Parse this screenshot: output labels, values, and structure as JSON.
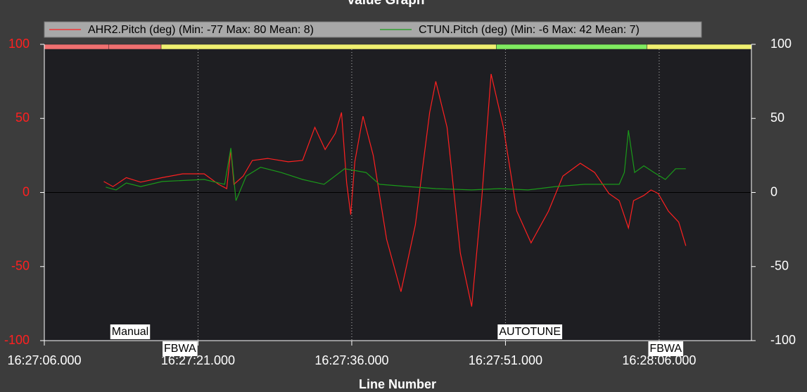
{
  "chart_data": {
    "type": "line",
    "title": "Value Graph",
    "xlabel": "Line Number",
    "xlim": [
      0,
      69
    ],
    "xticks": [
      {
        "value": 0,
        "label": "16:27:06.000"
      },
      {
        "value": 15,
        "label": "16:27:21.000"
      },
      {
        "value": 30,
        "label": "16:27:36.000"
      },
      {
        "value": 45,
        "label": "16:27:51.000"
      },
      {
        "value": 60,
        "label": "16:28:06.000"
      }
    ],
    "ylim": [
      -100,
      100
    ],
    "yticks": [
      -100,
      -50,
      0,
      50,
      100
    ],
    "y2lim": [
      -100,
      100
    ],
    "y2ticks": [
      -100,
      -50,
      0,
      50,
      100
    ],
    "grid": true,
    "series": [
      {
        "name": "AHR2.Pitch (deg) (Min: -77 Max: 80 Mean: 8)",
        "color": "#ff2020",
        "x": [
          5.8,
          6.7,
          8.0,
          9.4,
          11.5,
          13.5,
          15.6,
          17.0,
          17.8,
          18.2,
          18.5,
          19.4,
          20.3,
          21.8,
          23.8,
          25.2,
          26.4,
          27.4,
          28.4,
          29.0,
          29.5,
          29.9,
          30.3,
          31.1,
          32.1,
          33.4,
          34.8,
          36.2,
          37.6,
          38.2,
          39.3,
          40.6,
          41.7,
          42.7,
          43.6,
          44.8,
          46.1,
          47.5,
          49.2,
          50.6,
          52.3,
          53.7,
          55.1,
          56.1,
          57.0,
          57.5,
          58.5,
          59.2,
          59.9,
          60.9,
          61.9,
          62.6
        ],
        "values": [
          7.4,
          4,
          10,
          7,
          10,
          12.6,
          12.6,
          5.5,
          2.6,
          29,
          5.5,
          11,
          21.6,
          23,
          20.7,
          21.6,
          44,
          29,
          40,
          54,
          6.4,
          -15,
          20.7,
          51.5,
          25,
          -31.6,
          -67,
          -22,
          54,
          75,
          44,
          -41,
          -77,
          -3,
          80,
          44,
          -12.6,
          -34,
          -12.6,
          11,
          19.7,
          13.5,
          -0.7,
          -5.5,
          -24,
          -5.5,
          -2,
          1.7,
          -0.7,
          -12.6,
          -20,
          -36
        ]
      },
      {
        "name": "CTUN.Pitch (deg) (Min: -6 Max: 42 Mean: 7)",
        "color": "#1a9a1a",
        "x": [
          6.0,
          7.0,
          8.0,
          9.4,
          11.5,
          15.6,
          17.6,
          18.2,
          18.7,
          19.7,
          21.1,
          23.1,
          25.2,
          27.3,
          29.3,
          31.4,
          32.7,
          35.5,
          38.2,
          41.7,
          44.4,
          47.2,
          49.9,
          52.7,
          56.1,
          56.6,
          57.0,
          57.6,
          58.5,
          59.5,
          60.6,
          61.6,
          62.6
        ],
        "values": [
          3.6,
          1.7,
          6.4,
          4,
          7.4,
          8.8,
          5.5,
          30,
          -5.5,
          11,
          17,
          13.5,
          8.8,
          5.5,
          16,
          13.5,
          5.5,
          4,
          2.6,
          1.7,
          2.6,
          1.7,
          4,
          5.5,
          5.5,
          13.5,
          42,
          13.5,
          18,
          13.5,
          8.8,
          16,
          16
        ]
      }
    ],
    "modes": [
      {
        "label": null,
        "start": 0,
        "color": "#f07070"
      },
      {
        "label": "Manual",
        "start": 6.3,
        "color": "#f07070"
      },
      {
        "label": "FBWA",
        "start": 11.4,
        "color": "#f0f070"
      },
      {
        "label": "AUTOTUNE",
        "start": 44.1,
        "color": "#80ec60"
      },
      {
        "label": "FBWA",
        "start": 58.8,
        "color": "#f0f070"
      }
    ]
  }
}
